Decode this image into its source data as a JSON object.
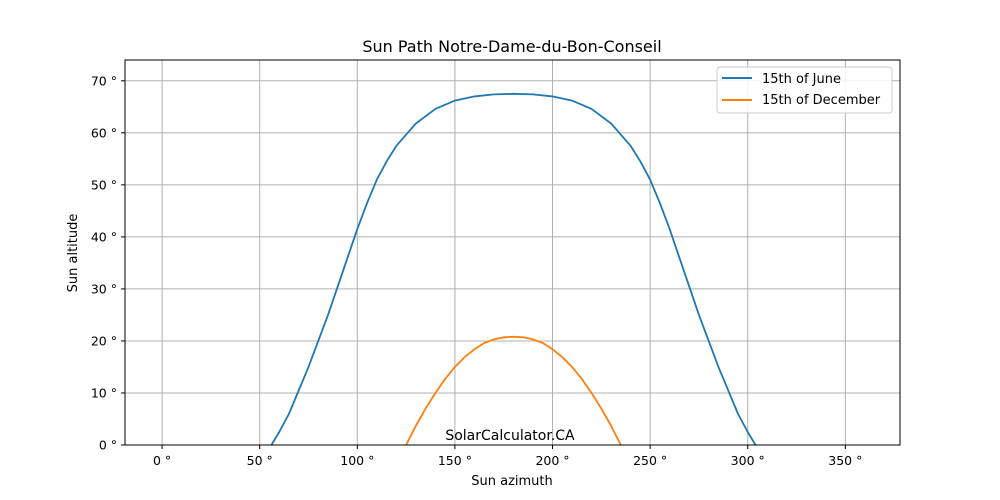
{
  "chart_data": {
    "type": "line",
    "title": "Sun Path Notre-Dame-du-Bon-Conseil",
    "xlabel": "Sun azimuth",
    "ylabel": "Sun altitude",
    "xlim": [
      -19,
      378
    ],
    "ylim": [
      0,
      74
    ],
    "x_ticks": [
      0,
      50,
      100,
      150,
      200,
      250,
      300,
      350
    ],
    "x_tick_labels": [
      "0 °",
      "50 °",
      "100 °",
      "150 °",
      "200 °",
      "250 °",
      "300 °",
      "350 °"
    ],
    "y_ticks": [
      0,
      10,
      20,
      30,
      40,
      50,
      60,
      70
    ],
    "y_tick_labels": [
      "0 °",
      "10 °",
      "20 °",
      "30 °",
      "40 °",
      "50 °",
      "60 °",
      "70 °"
    ],
    "grid": true,
    "legend_position": "top-right",
    "annotation": "SolarCalculator.CA",
    "series": [
      {
        "name": "15th of June",
        "color": "#1f77b4",
        "points": [
          [
            56,
            0
          ],
          [
            60,
            2.5
          ],
          [
            65,
            6
          ],
          [
            70,
            10.5
          ],
          [
            75,
            15
          ],
          [
            80,
            20
          ],
          [
            85,
            25
          ],
          [
            90,
            30.5
          ],
          [
            95,
            36
          ],
          [
            100,
            41.5
          ],
          [
            105,
            46.5
          ],
          [
            110,
            51
          ],
          [
            115,
            54.5
          ],
          [
            120,
            57.5
          ],
          [
            130,
            61.8
          ],
          [
            140,
            64.6
          ],
          [
            150,
            66.2
          ],
          [
            160,
            67
          ],
          [
            170,
            67.4
          ],
          [
            180,
            67.5
          ],
          [
            190,
            67.4
          ],
          [
            200,
            67
          ],
          [
            210,
            66.2
          ],
          [
            220,
            64.6
          ],
          [
            230,
            61.8
          ],
          [
            240,
            57.5
          ],
          [
            245,
            54.5
          ],
          [
            250,
            51
          ],
          [
            255,
            46.5
          ],
          [
            260,
            41.5
          ],
          [
            265,
            36
          ],
          [
            270,
            30.5
          ],
          [
            275,
            25
          ],
          [
            280,
            20
          ],
          [
            285,
            15
          ],
          [
            290,
            10.5
          ],
          [
            295,
            6
          ],
          [
            300,
            2.5
          ],
          [
            304,
            0
          ]
        ]
      },
      {
        "name": "15th of December",
        "color": "#ff7f0e",
        "points": [
          [
            125,
            0
          ],
          [
            130,
            3.7
          ],
          [
            135,
            7
          ],
          [
            140,
            10
          ],
          [
            145,
            12.7
          ],
          [
            150,
            15
          ],
          [
            155,
            16.9
          ],
          [
            160,
            18.4
          ],
          [
            165,
            19.6
          ],
          [
            170,
            20.3
          ],
          [
            175,
            20.7
          ],
          [
            180,
            20.8
          ],
          [
            185,
            20.7
          ],
          [
            190,
            20.3
          ],
          [
            195,
            19.6
          ],
          [
            200,
            18.4
          ],
          [
            205,
            16.9
          ],
          [
            210,
            15
          ],
          [
            215,
            12.7
          ],
          [
            220,
            10
          ],
          [
            225,
            7
          ],
          [
            230,
            3.7
          ],
          [
            235,
            0
          ]
        ]
      }
    ]
  }
}
